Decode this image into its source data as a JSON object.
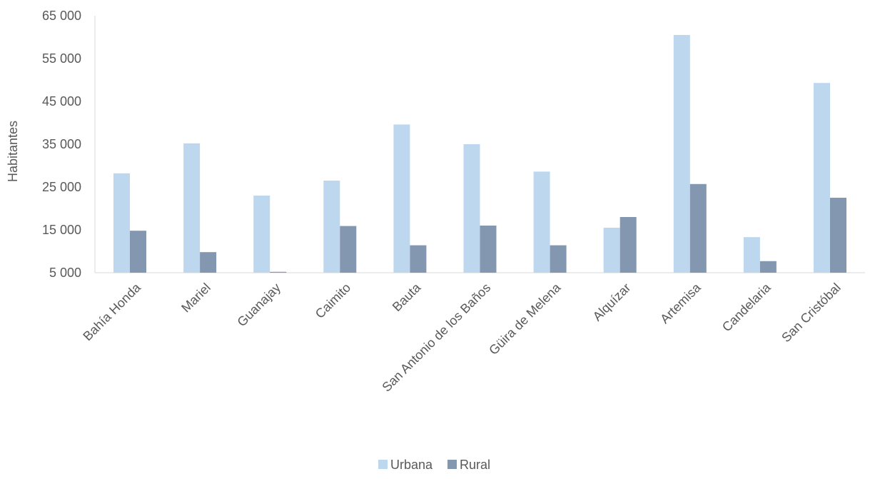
{
  "chart_data": {
    "type": "bar",
    "title": "",
    "xlabel": "",
    "ylabel": "Habitantes",
    "ylim": [
      5000,
      65000
    ],
    "yticks": [
      5000,
      15000,
      25000,
      35000,
      45000,
      55000,
      65000
    ],
    "ytick_labels": [
      "5 000",
      "15 000",
      "25 000",
      "35 000",
      "45 000",
      "55 000",
      "65 000"
    ],
    "categories": [
      "Bahía Honda",
      "Mariel",
      "Guanajay",
      "Caimito",
      "Bauta",
      "San Antonio de los Baños",
      "Güira de Melena",
      "Alquízar",
      "Artemisa",
      "Candelaria",
      "San Cristóbal"
    ],
    "series": [
      {
        "name": "Urbana",
        "color": "#bdd7ee",
        "values": [
          28200,
          35200,
          23000,
          26500,
          39600,
          35000,
          28600,
          15500,
          60500,
          13300,
          49300
        ]
      },
      {
        "name": "Rural",
        "color": "#8497b0",
        "values": [
          14800,
          9800,
          5200,
          15900,
          11400,
          16000,
          11400,
          18000,
          25700,
          7700,
          22500
        ]
      }
    ],
    "grid": false,
    "legend_position": "bottom-center"
  }
}
